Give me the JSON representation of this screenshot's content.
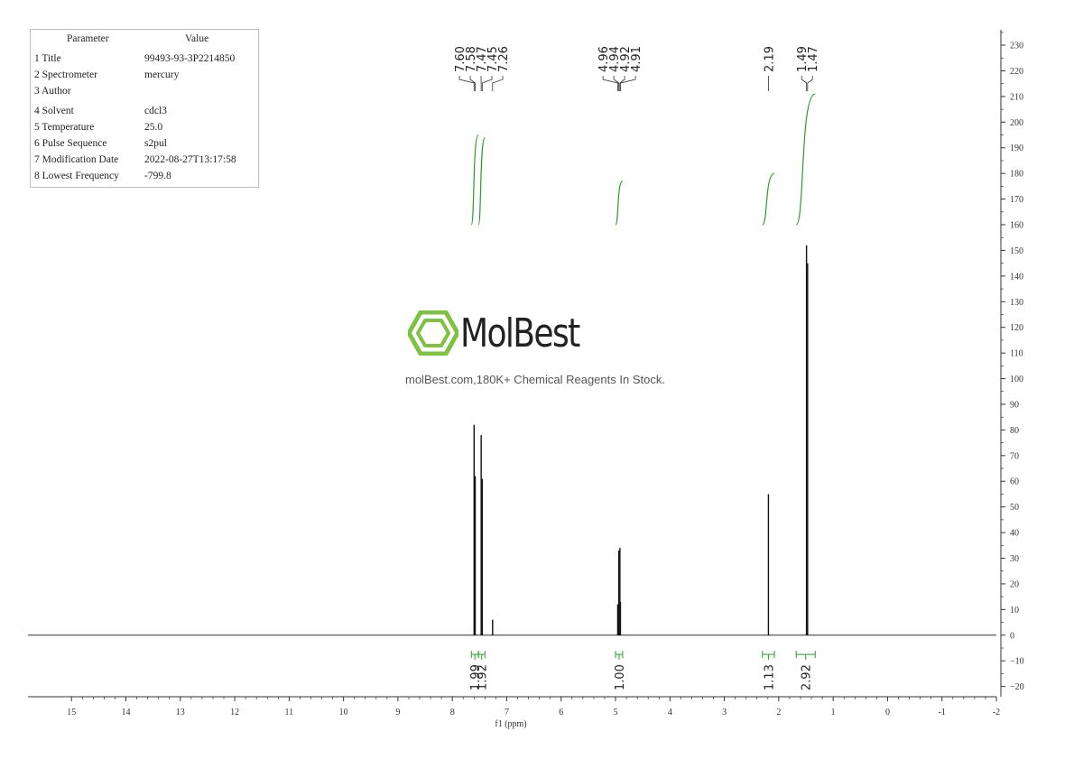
{
  "params": {
    "header": {
      "param": "Parameter",
      "value": "Value"
    },
    "rows": [
      {
        "param": "1 Title",
        "value": "99493-93-3P2214850"
      },
      {
        "param": "2 Spectrometer",
        "value": "mercury"
      },
      {
        "param": "3 Author",
        "value": ""
      },
      {
        "param": "4 Solvent",
        "value": "cdcl3"
      },
      {
        "param": "5 Temperature",
        "value": "25.0"
      },
      {
        "param": "6 Pulse Sequence",
        "value": "s2pul"
      },
      {
        "param": "7 Modification Date",
        "value": "2022-08-27T13:17:58"
      },
      {
        "param": "8 Lowest Frequency",
        "value": "-799.8"
      }
    ]
  },
  "watermark": {
    "brand": "MolBest",
    "tagline": "molBest.com,180K+ Chemical Reagents In Stock.",
    "brand_color": "#7dc241"
  },
  "chart_data": {
    "type": "line",
    "xlabel": "f1 (ppm)",
    "xlim": [
      15.8,
      -2
    ],
    "ylim": [
      -24,
      236
    ],
    "x_ticks": [
      15,
      14,
      13,
      12,
      11,
      10,
      9,
      8,
      7,
      6,
      5,
      4,
      3,
      2,
      1,
      0,
      -1,
      -2
    ],
    "y_ticks": [
      230,
      220,
      210,
      200,
      190,
      180,
      170,
      160,
      150,
      140,
      130,
      120,
      110,
      100,
      90,
      80,
      70,
      60,
      50,
      40,
      30,
      20,
      10,
      0,
      -10,
      -20
    ],
    "peaks": [
      {
        "x": 7.6,
        "y": 82
      },
      {
        "x": 7.58,
        "y": 62
      },
      {
        "x": 7.47,
        "y": 78
      },
      {
        "x": 7.45,
        "y": 61
      },
      {
        "x": 7.26,
        "y": 6
      },
      {
        "x": 4.96,
        "y": 12
      },
      {
        "x": 4.94,
        "y": 33
      },
      {
        "x": 4.92,
        "y": 34
      },
      {
        "x": 4.91,
        "y": 13
      },
      {
        "x": 2.19,
        "y": 55
      },
      {
        "x": 1.49,
        "y": 152
      },
      {
        "x": 1.47,
        "y": 145
      }
    ],
    "peak_label_groups": [
      {
        "labels": [
          "7.60",
          "7.58",
          "7.47",
          "7.45",
          "7.26"
        ],
        "targets": [
          7.6,
          7.58,
          7.47,
          7.45,
          7.26
        ]
      },
      {
        "labels": [
          "4.96",
          "4.94",
          "4.92",
          "4.91"
        ],
        "targets": [
          4.96,
          4.94,
          4.92,
          4.91
        ]
      },
      {
        "labels": [
          "2.19"
        ],
        "targets": [
          2.19
        ]
      },
      {
        "labels": [
          "1.49",
          "1.47"
        ],
        "targets": [
          1.49,
          1.47
        ]
      }
    ],
    "integrals": [
      {
        "from": 7.65,
        "to": 7.52,
        "value": "1.99",
        "y_start": 160,
        "y_end": 195
      },
      {
        "from": 7.52,
        "to": 7.4,
        "value": "1.92",
        "y_start": 160,
        "y_end": 194
      },
      {
        "from": 5.0,
        "to": 4.87,
        "value": "1.00",
        "y_start": 160,
        "y_end": 177
      },
      {
        "from": 2.3,
        "to": 2.08,
        "value": "1.13",
        "y_start": 160,
        "y_end": 180
      },
      {
        "from": 1.68,
        "to": 1.33,
        "value": "2.92",
        "y_start": 160,
        "y_end": 211
      }
    ],
    "colors": {
      "spectrum": "#111111",
      "integral": "#2a9d2a",
      "axis": "#333333"
    }
  }
}
